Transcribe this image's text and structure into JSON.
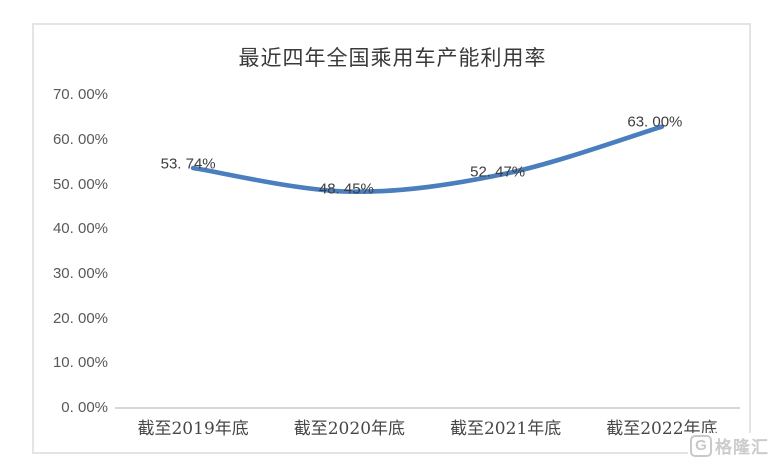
{
  "watermark": {
    "logo_letter": "G",
    "text": "格隆汇"
  },
  "chart_data": {
    "type": "line",
    "title": "最近四年全国乘用车产能利用率",
    "categories": [
      "截至2019年底",
      "截至2020年底",
      "截至2021年底",
      "截至2022年底"
    ],
    "values": [
      53.74,
      48.45,
      52.47,
      63.0
    ],
    "data_labels": [
      "53. 74%",
      "48. 45%",
      "52. 47%",
      "63. 00%"
    ],
    "y_ticks": [
      "70. 00%",
      "60. 00%",
      "50. 00%",
      "40. 00%",
      "30. 00%",
      "20. 00%",
      "10. 00%",
      "0. 00%"
    ],
    "ylim": [
      0,
      70
    ],
    "y_step": 10,
    "xlabel": "",
    "ylabel": "",
    "grid": false,
    "legend": "none",
    "smooth": true,
    "line_color": "#4a7ebd",
    "axis_color": "#bfbfbf"
  }
}
